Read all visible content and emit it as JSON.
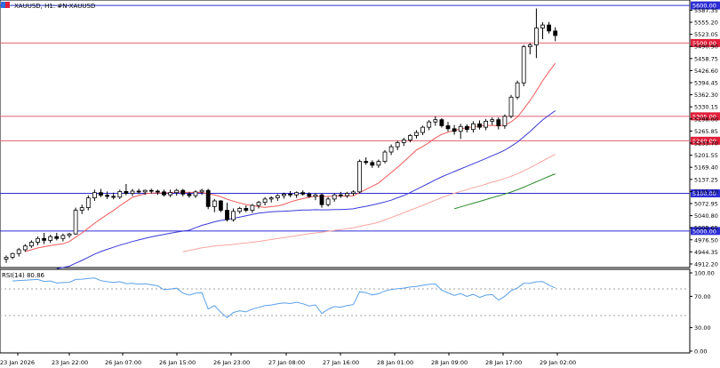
{
  "header": {
    "title": "XAUUSD, H1:  #N-XAUUSD",
    "rsi_label": "RSI(14) 80.86"
  },
  "price_axis": {
    "ticks": [
      "5587.35",
      "5555.20",
      "5523.05",
      "5490.90",
      "5458.75",
      "5426.60",
      "5394.45",
      "5362.30",
      "5330.15",
      "5298.00",
      "5265.85",
      "5233.70",
      "5201.55",
      "5169.40",
      "5137.25",
      "5105.10",
      "5072.95",
      "5040.80",
      "5008.65",
      "4976.50",
      "4944.35",
      "4912.20"
    ],
    "min": 4905,
    "max": 5605
  },
  "rsi_axis": {
    "ticks": [
      "100.00",
      "70.00",
      "30.00",
      "0.00"
    ]
  },
  "time_axis": {
    "labels": [
      "23 Jan 2026",
      "23 Jan 22:00",
      "26 Jan 07:00",
      "26 Jan 15:00",
      "26 Jan 23:00",
      "27 Jan 08:00",
      "27 Jan 16:00",
      "28 Jan 01:00",
      "28 Jan 09:00",
      "28 Jan 17:00",
      "29 Jan 02:00"
    ]
  },
  "levels": [
    {
      "price": 5600.0,
      "label": "5600.00",
      "color": "#2d2dd6",
      "badge": "#2d2dd6"
    },
    {
      "price": 5500.0,
      "label": "5500.00",
      "color": "#e06070",
      "badge": "#e0203a"
    },
    {
      "price": 5305.0,
      "label": "5305.00",
      "color": "#e06070",
      "badge": "#e0203a"
    },
    {
      "price": 5240.0,
      "label": "5240.00",
      "color": "#e06070",
      "badge": "#e0203a"
    },
    {
      "price": 5100.0,
      "label": "5100.00",
      "color": "#2d2dd6",
      "badge": "#2d2dd6"
    },
    {
      "price": 5000.0,
      "label": "5000.00",
      "color": "#2d2dd6",
      "badge": "#2d2dd6"
    }
  ],
  "colors": {
    "ma_fast": "#ef5a5a",
    "ma_mid": "#3a3ad8",
    "ma_slow": "#f7a5a0",
    "ma_long": "#2e8b2e",
    "rsi": "#5aa0e8",
    "candle_up": "#ffffff",
    "candle_down": "#000000"
  },
  "chart_data": {
    "type": "candlestick",
    "symbol": "XAUUSD",
    "timeframe": "H1",
    "candles": [
      [
        4925,
        4935,
        4915,
        4930
      ],
      [
        4930,
        4942,
        4925,
        4940
      ],
      [
        4940,
        4955,
        4932,
        4950
      ],
      [
        4950,
        4965,
        4945,
        4960
      ],
      [
        4960,
        4975,
        4955,
        4970
      ],
      [
        4970,
        4985,
        4962,
        4980
      ],
      [
        4980,
        4995,
        4965,
        4975
      ],
      [
        4975,
        4990,
        4968,
        4985
      ],
      [
        4985,
        4995,
        4975,
        4980
      ],
      [
        4980,
        4993,
        4972,
        4988
      ],
      [
        4988,
        4995,
        4982,
        4992
      ],
      [
        4992,
        5062,
        4990,
        5055
      ],
      [
        5055,
        5070,
        5045,
        5062
      ],
      [
        5062,
        5095,
        5055,
        5088
      ],
      [
        5088,
        5110,
        5080,
        5102
      ],
      [
        5102,
        5112,
        5090,
        5095
      ],
      [
        5095,
        5105,
        5085,
        5092
      ],
      [
        5092,
        5102,
        5084,
        5090
      ],
      [
        5090,
        5110,
        5085,
        5105
      ],
      [
        5105,
        5125,
        5095,
        5100
      ],
      [
        5100,
        5112,
        5093,
        5106
      ],
      [
        5106,
        5112,
        5098,
        5104
      ],
      [
        5104,
        5110,
        5096,
        5108
      ],
      [
        5108,
        5112,
        5100,
        5106
      ],
      [
        5106,
        5110,
        5096,
        5104
      ],
      [
        5104,
        5110,
        5092,
        5096
      ],
      [
        5096,
        5110,
        5090,
        5102
      ],
      [
        5102,
        5112,
        5094,
        5108
      ],
      [
        5108,
        5112,
        5092,
        5098
      ],
      [
        5098,
        5104,
        5088,
        5094
      ],
      [
        5094,
        5108,
        5088,
        5104
      ],
      [
        5104,
        5112,
        5096,
        5108
      ],
      [
        5108,
        5112,
        5058,
        5065
      ],
      [
        5065,
        5085,
        5050,
        5080
      ],
      [
        5080,
        5082,
        5050,
        5055
      ],
      [
        5055,
        5075,
        5025,
        5030
      ],
      [
        5030,
        5060,
        5025,
        5052
      ],
      [
        5052,
        5064,
        5046,
        5060
      ],
      [
        5060,
        5068,
        5050,
        5055
      ],
      [
        5055,
        5072,
        5048,
        5068
      ],
      [
        5068,
        5080,
        5060,
        5076
      ],
      [
        5076,
        5090,
        5068,
        5085
      ],
      [
        5085,
        5092,
        5076,
        5088
      ],
      [
        5088,
        5098,
        5080,
        5094
      ],
      [
        5094,
        5102,
        5086,
        5098
      ],
      [
        5098,
        5106,
        5090,
        5096
      ],
      [
        5096,
        5105,
        5088,
        5102
      ],
      [
        5102,
        5108,
        5094,
        5098
      ],
      [
        5098,
        5103,
        5088,
        5092
      ],
      [
        5092,
        5100,
        5082,
        5096
      ],
      [
        5096,
        5100,
        5062,
        5070
      ],
      [
        5070,
        5090,
        5065,
        5085
      ],
      [
        5085,
        5100,
        5078,
        5096
      ],
      [
        5096,
        5104,
        5088,
        5094
      ],
      [
        5094,
        5104,
        5088,
        5100
      ],
      [
        5100,
        5108,
        5094,
        5104
      ],
      [
        5104,
        5190,
        5100,
        5185
      ],
      [
        5185,
        5196,
        5176,
        5182
      ],
      [
        5182,
        5188,
        5168,
        5175
      ],
      [
        5175,
        5190,
        5168,
        5185
      ],
      [
        5185,
        5215,
        5180,
        5210
      ],
      [
        5210,
        5230,
        5202,
        5224
      ],
      [
        5224,
        5240,
        5215,
        5235
      ],
      [
        5235,
        5248,
        5226,
        5242
      ],
      [
        5242,
        5258,
        5236,
        5254
      ],
      [
        5254,
        5268,
        5246,
        5262
      ],
      [
        5262,
        5280,
        5255,
        5276
      ],
      [
        5276,
        5295,
        5268,
        5290
      ],
      [
        5290,
        5305,
        5280,
        5296
      ],
      [
        5296,
        5300,
        5275,
        5280
      ],
      [
        5280,
        5290,
        5265,
        5272
      ],
      [
        5272,
        5282,
        5256,
        5265
      ],
      [
        5265,
        5285,
        5245,
        5278
      ],
      [
        5278,
        5284,
        5262,
        5270
      ],
      [
        5270,
        5292,
        5262,
        5285
      ],
      [
        5285,
        5294,
        5270,
        5276
      ],
      [
        5276,
        5298,
        5268,
        5292
      ],
      [
        5292,
        5302,
        5282,
        5296
      ],
      [
        5296,
        5302,
        5270,
        5280
      ],
      [
        5280,
        5310,
        5272,
        5305
      ],
      [
        5305,
        5362,
        5300,
        5356
      ],
      [
        5356,
        5400,
        5350,
        5394
      ],
      [
        5394,
        5495,
        5385,
        5490
      ],
      [
        5490,
        5500,
        5470,
        5495
      ],
      [
        5495,
        5592,
        5460,
        5540
      ],
      [
        5540,
        5555,
        5510,
        5548
      ],
      [
        5548,
        5556,
        5525,
        5532
      ],
      [
        5532,
        5542,
        5505,
        5520
      ]
    ],
    "rsi": {
      "name": "RSI(14)",
      "last": 80.86,
      "levels": [
        70,
        30
      ],
      "range": [
        0,
        100
      ]
    }
  }
}
